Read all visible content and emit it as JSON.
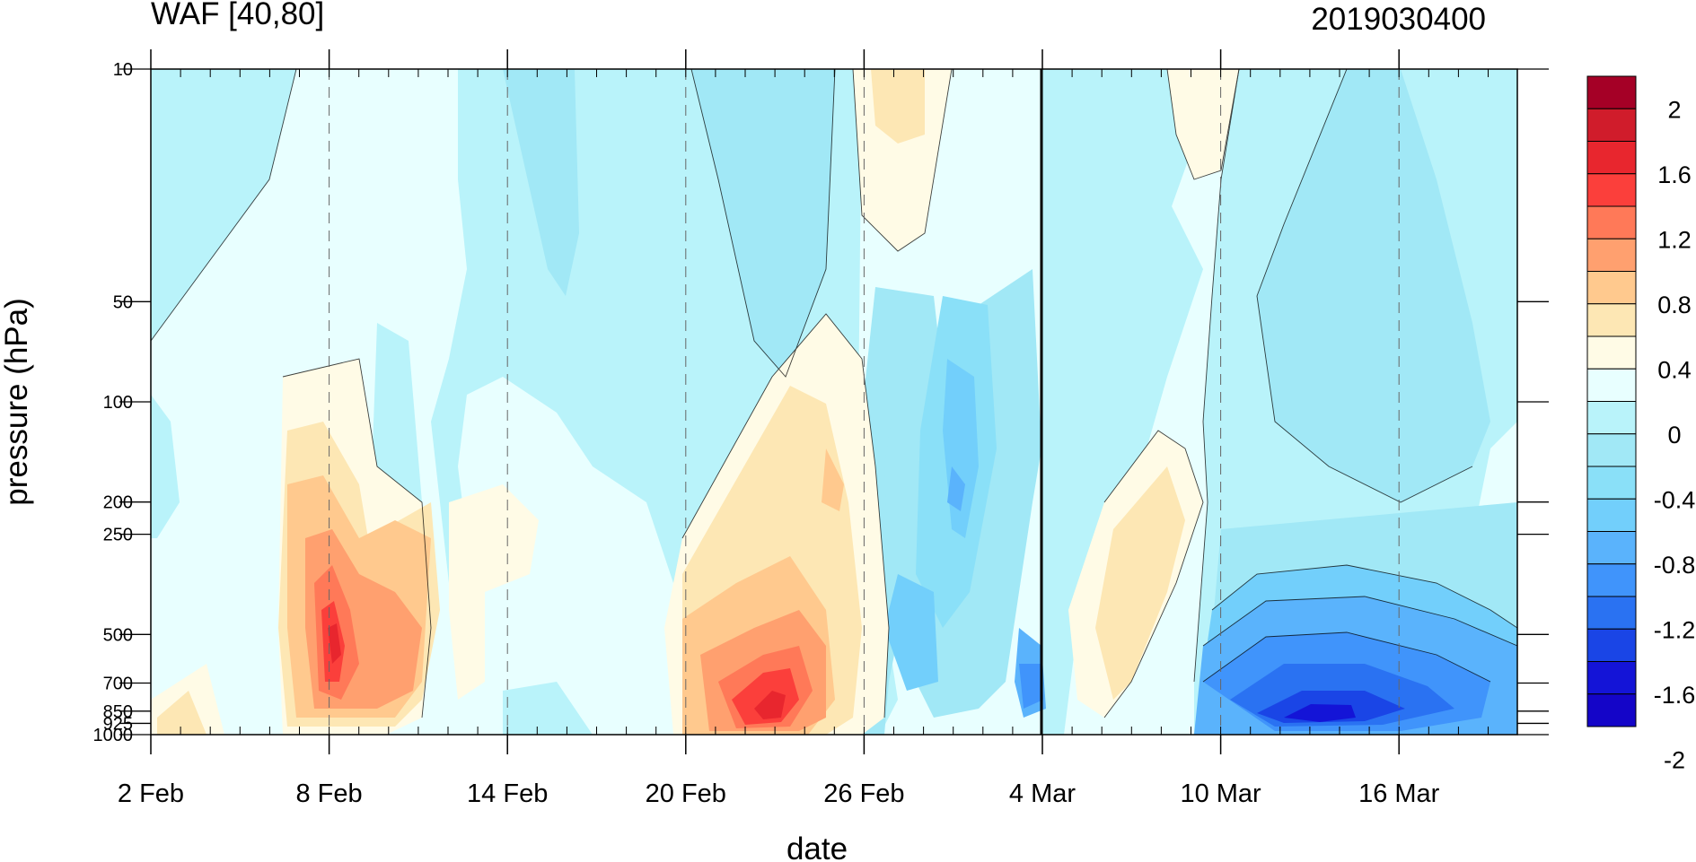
{
  "chart_data": {
    "type": "heatmap",
    "title": "WAF [40,80]",
    "subtitle_right": "2019030400",
    "xlabel": "date",
    "ylabel": "pressure (hPa)",
    "x_ticks": [
      "2 Feb",
      "8 Feb",
      "14 Feb",
      "20 Feb",
      "26 Feb",
      "4 Mar",
      "10 Mar",
      "16 Mar"
    ],
    "x_range": [
      "2 Feb",
      "19 Mar"
    ],
    "y_ticks": [
      10,
      50,
      100,
      200,
      250,
      500,
      700,
      850,
      925,
      1000
    ],
    "y_tick_labels": [
      "10",
      "50",
      "100",
      "200",
      "250",
      "500",
      "700",
      "850",
      "925",
      "1000"
    ],
    "y_range": [
      1000,
      10
    ],
    "y_scale": "log",
    "vertical_marker": "4 Mar",
    "grid": "dashed vertical at labelled dates",
    "colorbar": {
      "placement": "right",
      "labels": [
        "2",
        "1.6",
        "1.2",
        "0.8",
        "0.4",
        "0",
        "-0.4",
        "-0.8",
        "-1.2",
        "-1.6",
        "-2"
      ],
      "levels": [
        -2,
        -1.8,
        -1.6,
        -1.4,
        -1.2,
        -1,
        -0.8,
        -0.6,
        -0.4,
        -0.2,
        0,
        0.2,
        0.4,
        0.6,
        0.8,
        1,
        1.2,
        1.4,
        1.6,
        1.8,
        2
      ],
      "colors_top_to_bottom": [
        "#a50026",
        "#d01c2b",
        "#e8262e",
        "#fb3f3b",
        "#ff7958",
        "#ffa06f",
        "#ffc98e",
        "#fde7b4",
        "#fffbe6",
        "#e8ffff",
        "#b9f3fa",
        "#a1e8f6",
        "#8ae0f8",
        "#72cffb",
        "#5ab3fc",
        "#4094fb",
        "#2a72f2",
        "#1a45e6",
        "#1414d7",
        "#1405c8"
      ]
    },
    "features": [
      {
        "center_date": "8 Feb",
        "pressure_hPa": 500,
        "approx_max": 1.6
      },
      {
        "center_date": "10 Feb",
        "pressure_hPa": 500,
        "approx_max": 1.0
      },
      {
        "center_date": "24 Feb",
        "pressure_hPa": 700,
        "approx_max": 1.6
      },
      {
        "center_date": "25 Feb",
        "pressure_hPa": 200,
        "approx_max": 0.8
      },
      {
        "center_date": "7 Mar",
        "pressure_hPa": 250,
        "approx_max": 0.6
      },
      {
        "center_date": "27 Feb",
        "pressure_hPa": 20,
        "approx_max": 0.2
      },
      {
        "center_date": "9 Mar",
        "pressure_hPa": 20,
        "approx_max": 0.1
      },
      {
        "center_date": "1 Mar",
        "pressure_hPa": 200,
        "approx_min": -1.0
      },
      {
        "center_date": "4 Mar",
        "pressure_hPa": 700,
        "approx_min": -1.0
      },
      {
        "center_date": "14 Mar",
        "pressure_hPa": 850,
        "approx_min": -2.0
      }
    ]
  }
}
